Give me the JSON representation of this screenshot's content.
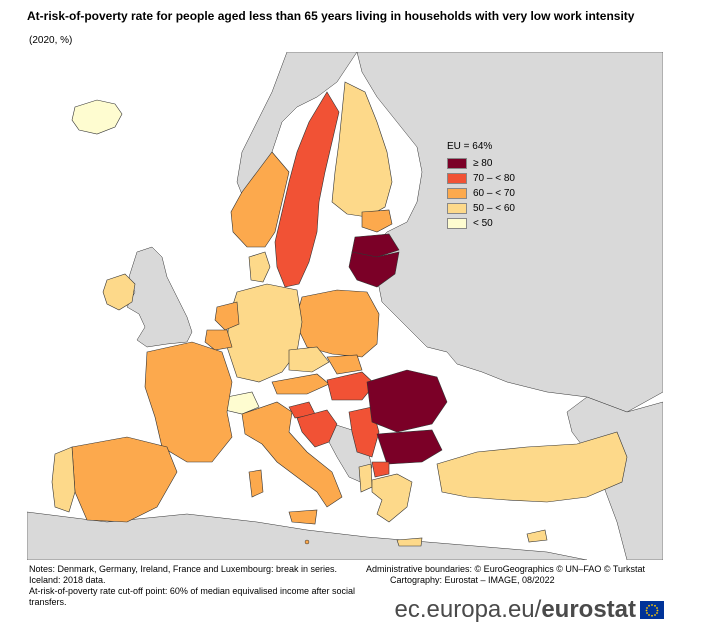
{
  "title": "At-risk-of-poverty rate for people aged less than 65 years living in households with very low work intensity",
  "subtitle": "(2020, %)",
  "legend": {
    "title": "EU = 64%",
    "classes": [
      {
        "label": "≥ 80",
        "color": "#7b0027"
      },
      {
        "label": "70 – < 80",
        "color": "#f15235"
      },
      {
        "label": "60 – < 70",
        "color": "#fca94d"
      },
      {
        "label": "50 – < 60",
        "color": "#fdd98a"
      },
      {
        "label": "< 50",
        "color": "#fefcd0"
      }
    ]
  },
  "colors": {
    "sea": "#ffffff",
    "non_data_land": "#d9d9d9",
    "border": "#333333"
  },
  "notes": [
    "Notes: Denmark, Germany, Ireland, France and Luxembourg: break in series.",
    "Iceland: 2018 data.",
    "At-risk-of-poverty rate cut-off point: 60% of median equivalised income after social transfers."
  ],
  "admin_boundaries": "Administrative boundaries: © EuroGeographics © UN–FAO © Turkstat",
  "cartography": "Cartography: Eurostat – IMAGE, 08/2022",
  "brand": {
    "url": "ec.europa.eu/",
    "name": "eurostat"
  }
}
